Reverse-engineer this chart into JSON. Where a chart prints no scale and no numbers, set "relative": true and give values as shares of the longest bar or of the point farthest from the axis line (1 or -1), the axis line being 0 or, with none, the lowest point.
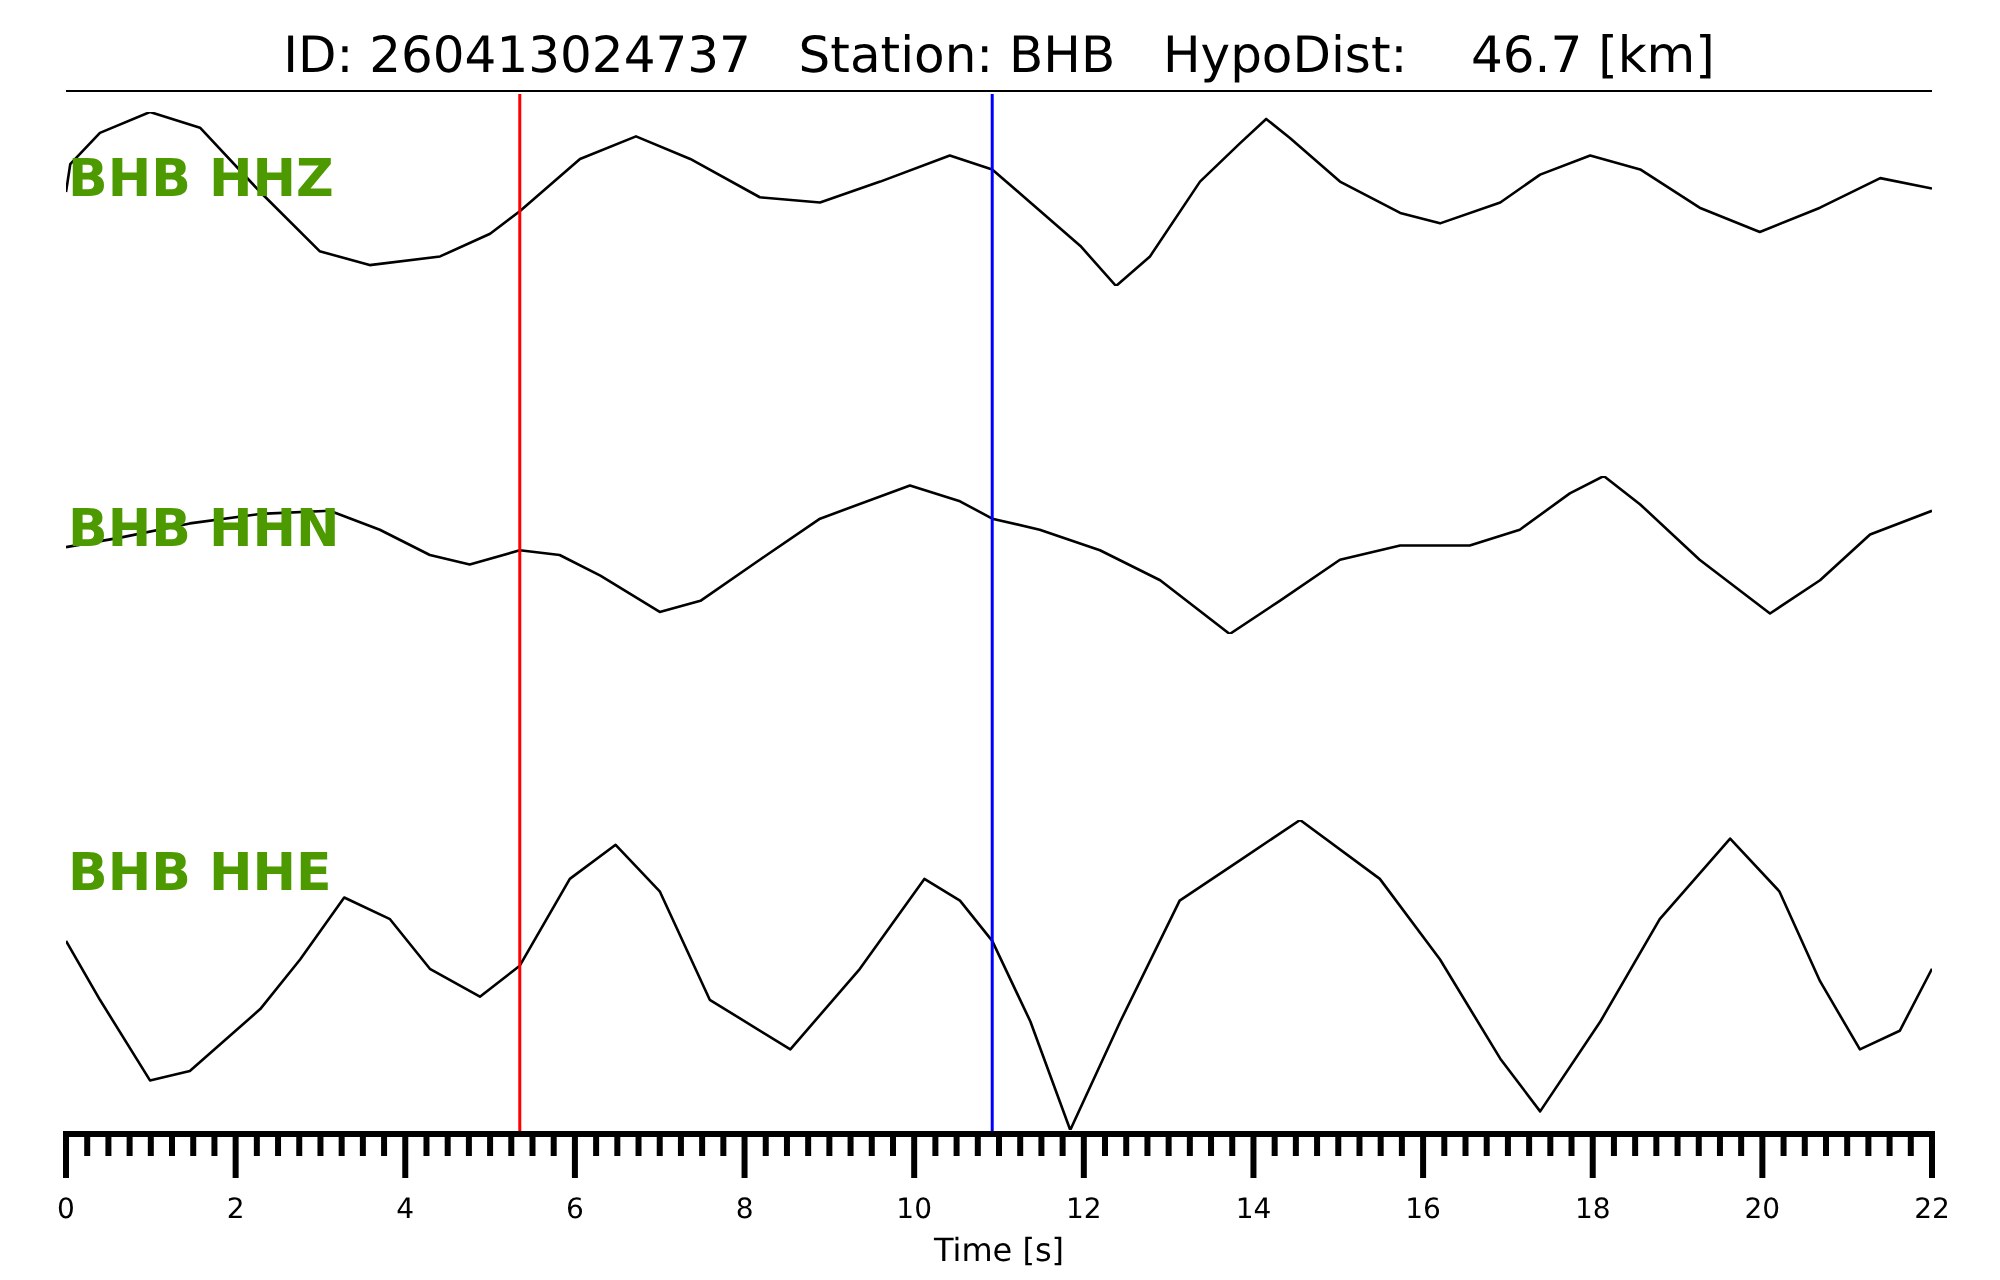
{
  "chart_data": [
    {
      "type": "line",
      "title": "ID: 260413024737   Station: BHB   HypoDist:    46.7 [km]",
      "relative": true,
      "marker": "none",
      "tick_labels": false,
      "xlim": [
        0,
        22
      ],
      "x": [
        0,
        0.05,
        0.4,
        0.99,
        1.58,
        2.29,
        2.99,
        3.58,
        4.41,
        5.0,
        5.35,
        6.06,
        6.72,
        7.36,
        8.18,
        8.89,
        9.6,
        10.42,
        10.92,
        11.37,
        11.96,
        12.38,
        12.78,
        13.37,
        13.84,
        14.15,
        14.43,
        15.02,
        15.73,
        16.2,
        16.91,
        17.38,
        17.97,
        18.56,
        19.26,
        19.97,
        20.68,
        21.39,
        22
      ],
      "series": [
        {
          "name": "BHB HHZ",
          "color": "#000000",
          "values": [
            0.54,
            0.7,
            0.88,
            1,
            0.91,
            0.54,
            0.2,
            0.12,
            0.17,
            0.3,
            0.43,
            0.73,
            0.86,
            0.73,
            0.51,
            0.48,
            0.6,
            0.75,
            0.67,
            0.48,
            0.23,
            0,
            0.17,
            0.6,
            0.82,
            0.96,
            0.85,
            0.6,
            0.42,
            0.36,
            0.48,
            0.64,
            0.75,
            0.67,
            0.45,
            0.31,
            0.45,
            0.62,
            0.56
          ]
        }
      ],
      "ref_lines": [
        {
          "axis": "x",
          "value": 5.35,
          "color": "#ff0000"
        },
        {
          "axis": "x",
          "value": 10.92,
          "color": "#0000ff"
        }
      ]
    },
    {
      "type": "line",
      "relative": true,
      "marker": "none",
      "tick_labels": false,
      "xlim": [
        0,
        22
      ],
      "x": [
        0,
        0.64,
        1.46,
        2.29,
        3.11,
        3.7,
        4.29,
        4.76,
        5.35,
        5.82,
        6.3,
        7.0,
        7.48,
        8.18,
        8.89,
        9.95,
        10.54,
        10.92,
        11.48,
        12.19,
        12.9,
        13.72,
        14.31,
        15.02,
        15.73,
        16.55,
        17.14,
        17.73,
        18.13,
        18.56,
        19.26,
        20.09,
        20.68,
        21.27,
        22
      ],
      "series": [
        {
          "name": "BHB HHN",
          "color": "#000000",
          "values": [
            0.55,
            0.61,
            0.7,
            0.76,
            0.78,
            0.66,
            0.5,
            0.44,
            0.53,
            0.5,
            0.37,
            0.14,
            0.21,
            0.47,
            0.73,
            0.94,
            0.84,
            0.73,
            0.66,
            0.53,
            0.34,
            0,
            0.21,
            0.47,
            0.56,
            0.56,
            0.66,
            0.89,
            1,
            0.82,
            0.47,
            0.13,
            0.34,
            0.63,
            0.78
          ]
        }
      ],
      "ref_lines": [
        {
          "axis": "x",
          "value": 5.35,
          "color": "#ff0000"
        },
        {
          "axis": "x",
          "value": 10.92,
          "color": "#0000ff"
        }
      ]
    },
    {
      "type": "line",
      "relative": true,
      "marker": "none",
      "xlabel": "Time [s]",
      "xlim": [
        0,
        22
      ],
      "xticks": [
        0,
        {
          "value": 0.25,
          "label": null
        },
        {
          "value": 0.5,
          "label": null
        },
        {
          "value": 0.75,
          "label": null
        },
        {
          "value": 1,
          "label": null
        },
        {
          "value": 1.25,
          "label": null
        },
        {
          "value": 1.5,
          "label": null
        },
        {
          "value": 1.75,
          "label": null
        },
        2,
        {
          "value": 2.25,
          "label": null
        },
        {
          "value": 2.5,
          "label": null
        },
        {
          "value": 2.75,
          "label": null
        },
        {
          "value": 3,
          "label": null
        },
        {
          "value": 3.25,
          "label": null
        },
        {
          "value": 3.5,
          "label": null
        },
        {
          "value": 3.75,
          "label": null
        },
        4,
        {
          "value": 4.25,
          "label": null
        },
        {
          "value": 4.5,
          "label": null
        },
        {
          "value": 4.75,
          "label": null
        },
        {
          "value": 5,
          "label": null
        },
        {
          "value": 5.25,
          "label": null
        },
        {
          "value": 5.5,
          "label": null
        },
        {
          "value": 5.75,
          "label": null
        },
        6,
        {
          "value": 6.25,
          "label": null
        },
        {
          "value": 6.5,
          "label": null
        },
        {
          "value": 6.75,
          "label": null
        },
        {
          "value": 7,
          "label": null
        },
        {
          "value": 7.25,
          "label": null
        },
        {
          "value": 7.5,
          "label": null
        },
        {
          "value": 7.75,
          "label": null
        },
        8,
        {
          "value": 8.25,
          "label": null
        },
        {
          "value": 8.5,
          "label": null
        },
        {
          "value": 8.75,
          "label": null
        },
        {
          "value": 9,
          "label": null
        },
        {
          "value": 9.25,
          "label": null
        },
        {
          "value": 9.5,
          "label": null
        },
        {
          "value": 9.75,
          "label": null
        },
        10,
        {
          "value": 10.25,
          "label": null
        },
        {
          "value": 10.5,
          "label": null
        },
        {
          "value": 10.75,
          "label": null
        },
        {
          "value": 11,
          "label": null
        },
        {
          "value": 11.25,
          "label": null
        },
        {
          "value": 11.5,
          "label": null
        },
        {
          "value": 11.75,
          "label": null
        },
        12,
        {
          "value": 12.25,
          "label": null
        },
        {
          "value": 12.5,
          "label": null
        },
        {
          "value": 12.75,
          "label": null
        },
        {
          "value": 13,
          "label": null
        },
        {
          "value": 13.25,
          "label": null
        },
        {
          "value": 13.5,
          "label": null
        },
        {
          "value": 13.75,
          "label": null
        },
        14,
        {
          "value": 14.25,
          "label": null
        },
        {
          "value": 14.5,
          "label": null
        },
        {
          "value": 14.75,
          "label": null
        },
        {
          "value": 15,
          "label": null
        },
        {
          "value": 15.25,
          "label": null
        },
        {
          "value": 15.5,
          "label": null
        },
        {
          "value": 15.75,
          "label": null
        },
        16,
        {
          "value": 16.25,
          "label": null
        },
        {
          "value": 16.5,
          "label": null
        },
        {
          "value": 16.75,
          "label": null
        },
        {
          "value": 17,
          "label": null
        },
        {
          "value": 17.25,
          "label": null
        },
        {
          "value": 17.5,
          "label": null
        },
        {
          "value": 17.75,
          "label": null
        },
        18,
        {
          "value": 18.25,
          "label": null
        },
        {
          "value": 18.5,
          "label": null
        },
        {
          "value": 18.75,
          "label": null
        },
        {
          "value": 19,
          "label": null
        },
        {
          "value": 19.25,
          "label": null
        },
        {
          "value": 19.5,
          "label": null
        },
        {
          "value": 19.75,
          "label": null
        },
        20,
        {
          "value": 20.25,
          "label": null
        },
        {
          "value": 20.5,
          "label": null
        },
        {
          "value": 20.75,
          "label": null
        },
        {
          "value": 21,
          "label": null
        },
        {
          "value": 21.25,
          "label": null
        },
        {
          "value": 21.5,
          "label": null
        },
        {
          "value": 21.75,
          "label": null
        },
        22
      ],
      "x": [
        0,
        0.4,
        0.99,
        1.46,
        2.29,
        2.76,
        3.28,
        3.82,
        4.29,
        4.88,
        5.35,
        5.94,
        6.48,
        7.0,
        7.59,
        8.54,
        9.36,
        10.12,
        10.54,
        10.92,
        11.37,
        11.84,
        12.43,
        13.13,
        13.84,
        14.55,
        15.49,
        16.2,
        16.91,
        17.38,
        18.09,
        18.79,
        19.62,
        20.2,
        20.68,
        21.15,
        21.62,
        22
      ],
      "series": [
        {
          "name": "BHB HHE",
          "color": "#000000",
          "values": [
            0.61,
            0.42,
            0.16,
            0.19,
            0.39,
            0.55,
            0.75,
            0.68,
            0.52,
            0.43,
            0.53,
            0.81,
            0.92,
            0.77,
            0.42,
            0.26,
            0.52,
            0.81,
            0.74,
            0.61,
            0.35,
            0,
            0.35,
            0.74,
            0.87,
            1,
            0.81,
            0.55,
            0.23,
            0.06,
            0.35,
            0.68,
            0.94,
            0.77,
            0.48,
            0.26,
            0.32,
            0.52
          ]
        }
      ],
      "ref_lines": [
        {
          "axis": "x",
          "value": 5.35,
          "color": "#ff0000"
        },
        {
          "axis": "x",
          "value": 10.92,
          "color": "#0000ff"
        }
      ]
    }
  ]
}
